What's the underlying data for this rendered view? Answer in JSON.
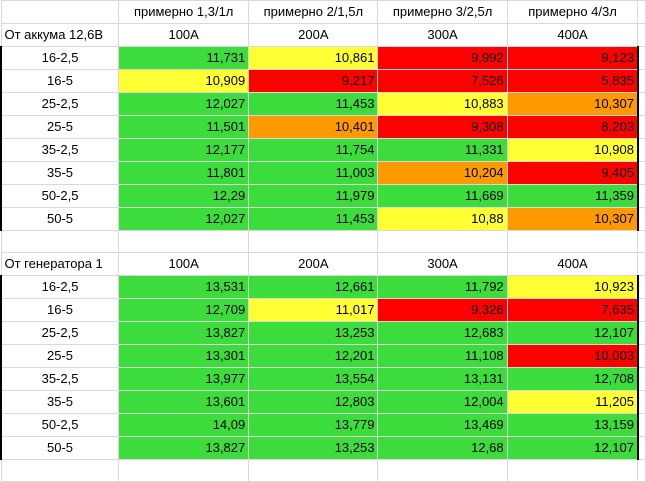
{
  "colors": {
    "green": "#3ddc3d",
    "yellow": "#ffff33",
    "orange": "#ff9900",
    "red": "#ff0000"
  },
  "header": {
    "top_labels": [
      "примерно 1,3/1л",
      "примерно 2/1,5л",
      "примерно 3/2,5л",
      "примерно 4/3л"
    ]
  },
  "tables": [
    {
      "title": "От аккума 12,6В",
      "columns": [
        "100А",
        "200А",
        "300А",
        "400А"
      ],
      "rows": [
        {
          "label": "16-2,5",
          "cells": [
            {
              "v": "11,731",
              "c": "green"
            },
            {
              "v": "10,861",
              "c": "yellow"
            },
            {
              "v": "9,992",
              "c": "red"
            },
            {
              "v": "9,123",
              "c": "red"
            }
          ]
        },
        {
          "label": "16-5",
          "cells": [
            {
              "v": "10,909",
              "c": "yellow"
            },
            {
              "v": "9,217",
              "c": "red"
            },
            {
              "v": "7,526",
              "c": "red"
            },
            {
              "v": "5,835",
              "c": "red"
            }
          ]
        },
        {
          "label": "25-2,5",
          "cells": [
            {
              "v": "12,027",
              "c": "green"
            },
            {
              "v": "11,453",
              "c": "green"
            },
            {
              "v": "10,883",
              "c": "yellow"
            },
            {
              "v": "10,307",
              "c": "orange"
            }
          ]
        },
        {
          "label": "25-5",
          "cells": [
            {
              "v": "11,501",
              "c": "green"
            },
            {
              "v": "10,401",
              "c": "orange"
            },
            {
              "v": "9,308",
              "c": "red"
            },
            {
              "v": "8,203",
              "c": "red"
            }
          ]
        },
        {
          "label": "35-2,5",
          "cells": [
            {
              "v": "12,177",
              "c": "green"
            },
            {
              "v": "11,754",
              "c": "green"
            },
            {
              "v": "11,331",
              "c": "green"
            },
            {
              "v": "10,908",
              "c": "yellow"
            }
          ]
        },
        {
          "label": "35-5",
          "cells": [
            {
              "v": "11,801",
              "c": "green"
            },
            {
              "v": "11,003",
              "c": "green"
            },
            {
              "v": "10,204",
              "c": "orange"
            },
            {
              "v": "9,405",
              "c": "red"
            }
          ]
        },
        {
          "label": "50-2,5",
          "cells": [
            {
              "v": "12,29",
              "c": "green"
            },
            {
              "v": "11,979",
              "c": "green"
            },
            {
              "v": "11,669",
              "c": "green"
            },
            {
              "v": "11,359",
              "c": "green"
            }
          ]
        },
        {
          "label": "50-5",
          "cells": [
            {
              "v": "12,027",
              "c": "green"
            },
            {
              "v": "11,453",
              "c": "green"
            },
            {
              "v": "10,88",
              "c": "yellow"
            },
            {
              "v": "10,307",
              "c": "orange"
            }
          ]
        }
      ]
    },
    {
      "title": "От генератора 1",
      "columns": [
        "100А",
        "200А",
        "300А",
        "400А"
      ],
      "rows": [
        {
          "label": "16-2,5",
          "cells": [
            {
              "v": "13,531",
              "c": "green"
            },
            {
              "v": "12,661",
              "c": "green"
            },
            {
              "v": "11,792",
              "c": "green"
            },
            {
              "v": "10,923",
              "c": "yellow"
            }
          ]
        },
        {
          "label": "16-5",
          "cells": [
            {
              "v": "12,709",
              "c": "green"
            },
            {
              "v": "11,017",
              "c": "yellow"
            },
            {
              "v": "9,326",
              "c": "red"
            },
            {
              "v": "7,635",
              "c": "red"
            }
          ]
        },
        {
          "label": "25-2,5",
          "cells": [
            {
              "v": "13,827",
              "c": "green"
            },
            {
              "v": "13,253",
              "c": "green"
            },
            {
              "v": "12,683",
              "c": "green"
            },
            {
              "v": "12,107",
              "c": "green"
            }
          ]
        },
        {
          "label": "25-5",
          "cells": [
            {
              "v": "13,301",
              "c": "green"
            },
            {
              "v": "12,201",
              "c": "green"
            },
            {
              "v": "11,108",
              "c": "green"
            },
            {
              "v": "10,003",
              "c": "red"
            }
          ]
        },
        {
          "label": "35-2,5",
          "cells": [
            {
              "v": "13,977",
              "c": "green"
            },
            {
              "v": "13,554",
              "c": "green"
            },
            {
              "v": "13,131",
              "c": "green"
            },
            {
              "v": "12,708",
              "c": "green"
            }
          ]
        },
        {
          "label": "35-5",
          "cells": [
            {
              "v": "13,601",
              "c": "green"
            },
            {
              "v": "12,803",
              "c": "green"
            },
            {
              "v": "12,004",
              "c": "green"
            },
            {
              "v": "11,205",
              "c": "yellow"
            }
          ]
        },
        {
          "label": "50-2,5",
          "cells": [
            {
              "v": "14,09",
              "c": "green"
            },
            {
              "v": "13,779",
              "c": "green"
            },
            {
              "v": "13,469",
              "c": "green"
            },
            {
              "v": "13,159",
              "c": "green"
            }
          ]
        },
        {
          "label": "50-5",
          "cells": [
            {
              "v": "13,827",
              "c": "green"
            },
            {
              "v": "13,253",
              "c": "green"
            },
            {
              "v": "12,68",
              "c": "green"
            },
            {
              "v": "12,107",
              "c": "green"
            }
          ]
        }
      ]
    }
  ]
}
